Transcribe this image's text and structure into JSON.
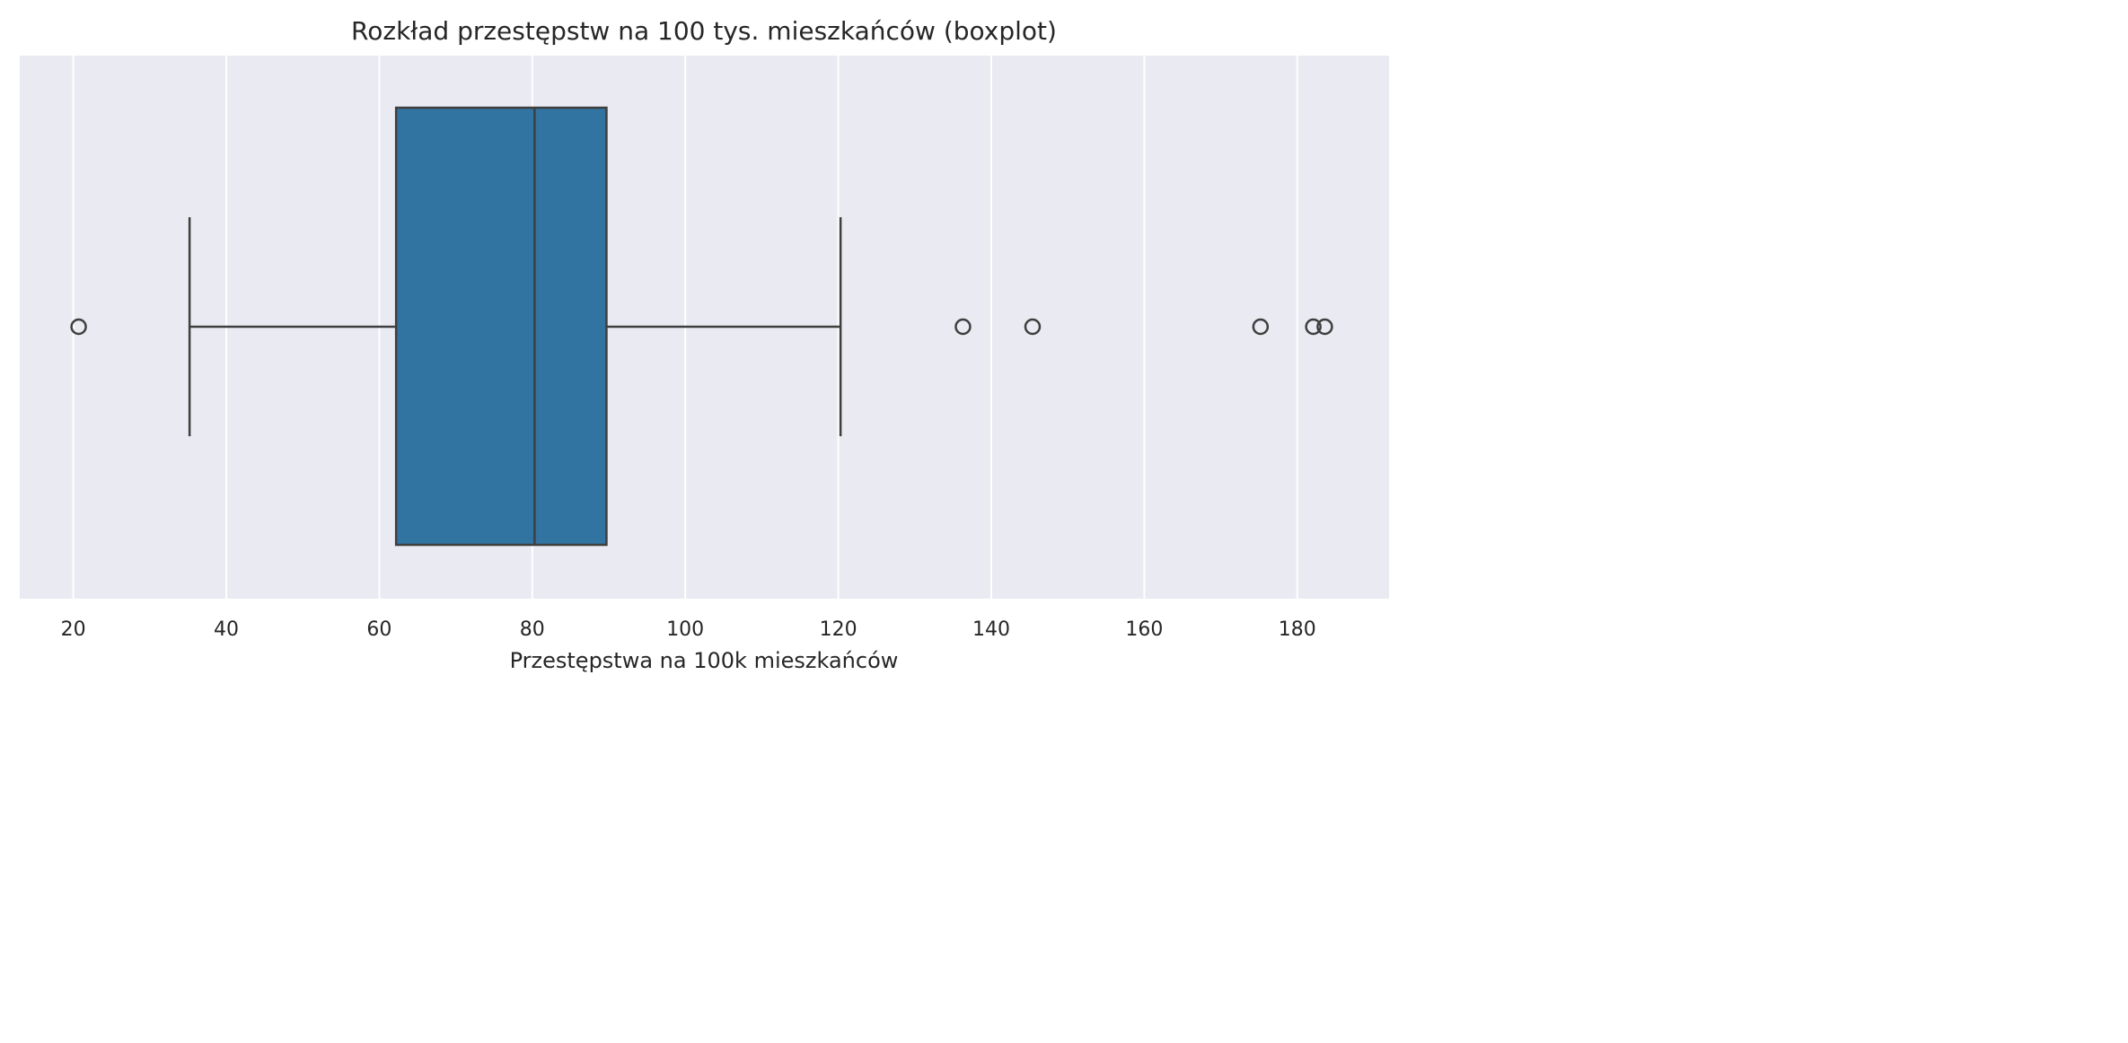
{
  "chart_data": {
    "type": "boxplot",
    "orientation": "horizontal",
    "title": "Rozkład przestępstw na 100 tys. mieszkańców (boxplot)",
    "xlabel": "Przestępstwa na 100k mieszkańców",
    "ylabel": "",
    "xlim": [
      13,
      192
    ],
    "xticks": [
      20,
      40,
      60,
      80,
      100,
      120,
      140,
      160,
      180
    ],
    "grid": true,
    "box": {
      "whisker_low": 35.2,
      "q1": 62.2,
      "median": 80.3,
      "q3": 89.7,
      "whisker_high": 120.3
    },
    "outliers": [
      20.7,
      136.3,
      145.4,
      175.2,
      182.1,
      183.6
    ],
    "colors": {
      "background": "#eaeaf2",
      "grid": "#ffffff",
      "box_fill": "#3274a1",
      "line": "#3f3f3f"
    }
  }
}
